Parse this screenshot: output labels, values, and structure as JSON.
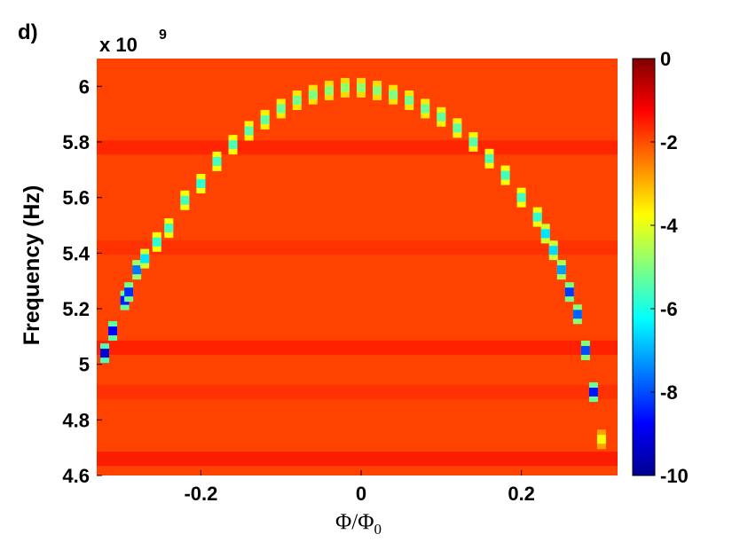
{
  "chart_data": {
    "type": "heatmap",
    "panel_label": "d)",
    "y_scale_label": "x 10",
    "y_scale_exponent": "9",
    "xlabel": {
      "phi": "Φ",
      "slash": "/",
      "phi0": "Φ",
      "sub": "0"
    },
    "ylabel": "Frequency (Hz)",
    "xlim": [
      -0.33,
      0.32
    ],
    "ylim": [
      4.6,
      6.1
    ],
    "x_ticks": [
      -0.2,
      0,
      0.2
    ],
    "x_tick_labels": [
      "-0.2",
      "0",
      "0.2"
    ],
    "y_ticks": [
      4.6,
      4.8,
      5.0,
      5.2,
      5.4,
      5.6,
      5.8,
      6.0
    ],
    "y_tick_labels": [
      "4.6",
      "4.8",
      "5",
      "5.2",
      "5.4",
      "5.6",
      "5.8",
      "6"
    ],
    "colorbar": {
      "range": [
        -10,
        0
      ],
      "ticks": [
        0,
        -2,
        -4,
        -6,
        -8,
        -10
      ],
      "tick_labels": [
        "0",
        "-2",
        "-4",
        "-6",
        "-8",
        "-10"
      ],
      "colormap": "jet"
    },
    "background_level": -1.9,
    "dip_curve": {
      "description": "resonance dip frequency vs flux",
      "points": [
        {
          "x": -0.32,
          "y": 5.04,
          "depth": -9.2
        },
        {
          "x": -0.31,
          "y": 5.12,
          "depth": -8.8
        },
        {
          "x": -0.295,
          "y": 5.23,
          "depth": -8.5
        },
        {
          "x": -0.29,
          "y": 5.26,
          "depth": -8.3
        },
        {
          "x": -0.28,
          "y": 5.34,
          "depth": -7.6
        },
        {
          "x": -0.27,
          "y": 5.38,
          "depth": -6.5
        },
        {
          "x": -0.255,
          "y": 5.44,
          "depth": -5.8
        },
        {
          "x": -0.24,
          "y": 5.49,
          "depth": -5.6
        },
        {
          "x": -0.22,
          "y": 5.59,
          "depth": -5.6
        },
        {
          "x": -0.2,
          "y": 5.65,
          "depth": -5.8
        },
        {
          "x": -0.18,
          "y": 5.73,
          "depth": -5.6
        },
        {
          "x": -0.16,
          "y": 5.79,
          "depth": -5.5
        },
        {
          "x": -0.14,
          "y": 5.84,
          "depth": -5.4
        },
        {
          "x": -0.12,
          "y": 5.88,
          "depth": -5.3
        },
        {
          "x": -0.1,
          "y": 5.92,
          "depth": -5.2
        },
        {
          "x": -0.08,
          "y": 5.95,
          "depth": -5.1
        },
        {
          "x": -0.06,
          "y": 5.97,
          "depth": -5.0
        },
        {
          "x": -0.04,
          "y": 5.985,
          "depth": -4.9
        },
        {
          "x": -0.02,
          "y": 5.995,
          "depth": -4.8
        },
        {
          "x": 0.0,
          "y": 5.995,
          "depth": -4.8
        },
        {
          "x": 0.02,
          "y": 5.985,
          "depth": -4.9
        },
        {
          "x": 0.04,
          "y": 5.97,
          "depth": -5.0
        },
        {
          "x": 0.06,
          "y": 5.95,
          "depth": -5.1
        },
        {
          "x": 0.08,
          "y": 5.92,
          "depth": -5.2
        },
        {
          "x": 0.1,
          "y": 5.89,
          "depth": -5.3
        },
        {
          "x": 0.12,
          "y": 5.85,
          "depth": -5.3
        },
        {
          "x": 0.14,
          "y": 5.8,
          "depth": -5.4
        },
        {
          "x": 0.16,
          "y": 5.74,
          "depth": -5.5
        },
        {
          "x": 0.18,
          "y": 5.68,
          "depth": -5.6
        },
        {
          "x": 0.2,
          "y": 5.6,
          "depth": -5.6
        },
        {
          "x": 0.22,
          "y": 5.53,
          "depth": -5.8
        },
        {
          "x": 0.23,
          "y": 5.47,
          "depth": -6.5
        },
        {
          "x": 0.24,
          "y": 5.41,
          "depth": -6.6
        },
        {
          "x": 0.25,
          "y": 5.34,
          "depth": -7.2
        },
        {
          "x": 0.26,
          "y": 5.26,
          "depth": -8.2
        },
        {
          "x": 0.27,
          "y": 5.18,
          "depth": -7.8
        },
        {
          "x": 0.28,
          "y": 5.05,
          "depth": -8.0
        },
        {
          "x": 0.29,
          "y": 4.9,
          "depth": -8.6
        },
        {
          "x": 0.3,
          "y": 4.73,
          "depth": -3.8
        }
      ]
    },
    "horizontal_bands": [
      {
        "y": 5.78,
        "level": -1.4
      },
      {
        "y": 5.42,
        "level": -1.6
      },
      {
        "y": 5.06,
        "level": -1.3
      },
      {
        "y": 4.9,
        "level": -1.6
      },
      {
        "y": 4.66,
        "level": -1.2
      }
    ]
  }
}
